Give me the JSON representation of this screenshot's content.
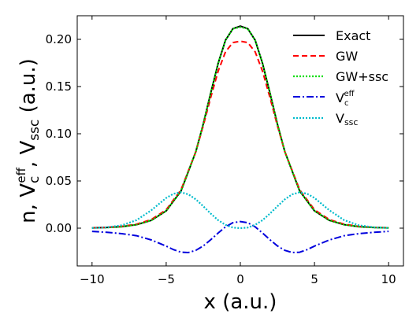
{
  "chart_data": {
    "type": "line",
    "xlabel": "x (a.u.)",
    "ylabel_parts": {
      "base": "n, V",
      "c_sub": "c",
      "eff_sup": "eff",
      "sep": ", V",
      "ssc_sub": "ssc",
      "units": " (a.u.)"
    },
    "xlim": [
      -11,
      11
    ],
    "ylim": [
      -0.04,
      0.225
    ],
    "x_ticks": [
      -10,
      -5,
      0,
      5,
      10
    ],
    "x_tick_labels": [
      "−10",
      "−5",
      "0",
      "5",
      "10"
    ],
    "y_ticks": [
      0.0,
      0.05,
      0.1,
      0.15,
      0.2
    ],
    "y_tick_labels": [
      "0.00",
      "0.05",
      "0.10",
      "0.15",
      "0.20"
    ],
    "grid": false,
    "legend_position": "top-right",
    "series": [
      {
        "name": "Exact",
        "color": "#000000",
        "style": "solid",
        "x": [
          -10,
          -9,
          -8,
          -7,
          -6,
          -5,
          -4,
          -3,
          -2.5,
          -2,
          -1.5,
          -1,
          -0.5,
          0,
          0.5,
          1,
          1.5,
          2,
          2.5,
          3,
          4,
          5,
          6,
          7,
          8,
          9,
          10
        ],
        "y": [
          0.0003,
          0.0007,
          0.0016,
          0.0037,
          0.0083,
          0.0183,
          0.0394,
          0.0811,
          0.1103,
          0.1429,
          0.1744,
          0.1991,
          0.2113,
          0.214,
          0.2113,
          0.1991,
          0.1744,
          0.1429,
          0.1103,
          0.0811,
          0.0394,
          0.0183,
          0.0083,
          0.0037,
          0.0016,
          0.0007,
          0.0003
        ]
      },
      {
        "name": "GW",
        "color": "#ff0000",
        "style": "dashed",
        "x": [
          -10,
          -9,
          -8,
          -7,
          -6,
          -5,
          -4,
          -3,
          -2.5,
          -2,
          -1.5,
          -1,
          -0.5,
          0,
          0.5,
          1,
          1.5,
          2,
          2.5,
          3,
          4,
          5,
          6,
          7,
          8,
          9,
          10
        ],
        "y": [
          0.0004,
          0.0009,
          0.0019,
          0.0042,
          0.0091,
          0.0195,
          0.0407,
          0.0811,
          0.1085,
          0.1383,
          0.1661,
          0.1868,
          0.1966,
          0.198,
          0.1966,
          0.1868,
          0.1661,
          0.1383,
          0.1085,
          0.0811,
          0.0407,
          0.0195,
          0.0091,
          0.0042,
          0.0019,
          0.0009,
          0.0004
        ]
      },
      {
        "name": "GW+ssc",
        "color": "#00dd00",
        "style": "dotted",
        "x": [
          -10,
          -9,
          -8,
          -7,
          -6,
          -5,
          -4,
          -3,
          -2.5,
          -2,
          -1.5,
          -1,
          -0.5,
          0,
          0.5,
          1,
          1.5,
          2,
          2.5,
          3,
          4,
          5,
          6,
          7,
          8,
          9,
          10
        ],
        "y": [
          0.0003,
          0.0007,
          0.0016,
          0.0037,
          0.0083,
          0.0183,
          0.0394,
          0.0811,
          0.1103,
          0.1429,
          0.1744,
          0.1991,
          0.2113,
          0.213,
          0.2113,
          0.1991,
          0.1744,
          0.1429,
          0.1103,
          0.0811,
          0.0394,
          0.0183,
          0.0083,
          0.0037,
          0.0016,
          0.0007,
          0.0003
        ]
      },
      {
        "name": "V_c^eff",
        "color": "#0000dd",
        "style": "dashdot",
        "x": [
          -10,
          -9,
          -8,
          -7,
          -6,
          -5,
          -4.5,
          -4,
          -3.5,
          -3,
          -2.5,
          -2,
          -1.5,
          -1,
          -0.5,
          0,
          0.5,
          1,
          1.5,
          2,
          2.5,
          3,
          3.5,
          4,
          4.5,
          5,
          6,
          7,
          8,
          9,
          10
        ],
        "y": [
          -0.0034,
          -0.0044,
          -0.0058,
          -0.008,
          -0.0125,
          -0.019,
          -0.0228,
          -0.0255,
          -0.0258,
          -0.0235,
          -0.0188,
          -0.0123,
          -0.0052,
          0.0014,
          0.0058,
          0.007,
          0.0058,
          0.0014,
          -0.0052,
          -0.0123,
          -0.0188,
          -0.0235,
          -0.0258,
          -0.0255,
          -0.0228,
          -0.019,
          -0.0125,
          -0.008,
          -0.0058,
          -0.0044,
          -0.0034
        ]
      },
      {
        "name": "V_ssc",
        "color": "#00bbcc",
        "style": "dotted",
        "x": [
          -10,
          -9,
          -8,
          -7,
          -6,
          -5,
          -4.5,
          -4,
          -3.5,
          -3,
          -2.5,
          -2,
          -1.5,
          -1,
          -0.5,
          0,
          0.5,
          1,
          1.5,
          2,
          2.5,
          3,
          3.5,
          4,
          4.5,
          5,
          6,
          7,
          8,
          9,
          10
        ],
        "y": [
          0.0002,
          0.0009,
          0.003,
          0.0085,
          0.019,
          0.032,
          0.0365,
          0.038,
          0.0358,
          0.0305,
          0.0232,
          0.0155,
          0.0085,
          0.0035,
          0.0006,
          0.0,
          0.0006,
          0.0035,
          0.0085,
          0.0155,
          0.0232,
          0.0305,
          0.0358,
          0.038,
          0.0365,
          0.032,
          0.019,
          0.0085,
          0.003,
          0.0009,
          0.0002
        ]
      }
    ],
    "legend": [
      {
        "label": "Exact",
        "color": "#000000",
        "style": "solid"
      },
      {
        "label": "GW",
        "color": "#ff0000",
        "style": "dashed"
      },
      {
        "label": "GW+ssc",
        "color": "#00dd00",
        "style": "dotted"
      },
      {
        "label_base": "V",
        "label_sub": "c",
        "label_sup": "eff",
        "color": "#0000dd",
        "style": "dashdot"
      },
      {
        "label_base": "V",
        "label_sub": "ssc",
        "color": "#00bbcc",
        "style": "dotted"
      }
    ]
  }
}
